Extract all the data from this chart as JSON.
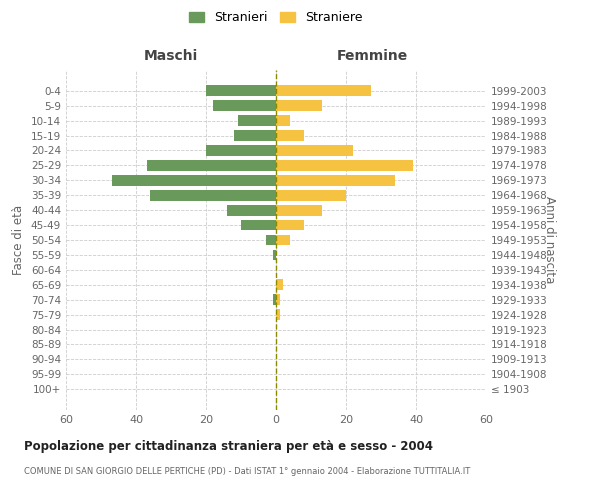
{
  "age_groups": [
    "0-4",
    "5-9",
    "10-14",
    "15-19",
    "20-24",
    "25-29",
    "30-34",
    "35-39",
    "40-44",
    "45-49",
    "50-54",
    "55-59",
    "60-64",
    "65-69",
    "70-74",
    "75-79",
    "80-84",
    "85-89",
    "90-94",
    "95-99",
    "100+"
  ],
  "birth_years": [
    "1999-2003",
    "1994-1998",
    "1989-1993",
    "1984-1988",
    "1979-1983",
    "1974-1978",
    "1969-1973",
    "1964-1968",
    "1959-1963",
    "1954-1958",
    "1949-1953",
    "1944-1948",
    "1939-1943",
    "1934-1938",
    "1929-1933",
    "1924-1928",
    "1919-1923",
    "1914-1918",
    "1909-1913",
    "1904-1908",
    "≤ 1903"
  ],
  "maschi": [
    20,
    18,
    11,
    12,
    20,
    37,
    47,
    36,
    14,
    10,
    3,
    1,
    0,
    0,
    1,
    0,
    0,
    0,
    0,
    0,
    0
  ],
  "femmine": [
    27,
    13,
    4,
    8,
    22,
    39,
    34,
    20,
    13,
    8,
    4,
    0,
    0,
    2,
    1,
    1,
    0,
    0,
    0,
    0,
    0
  ],
  "maschi_color": "#6a9a5b",
  "femmine_color": "#f5c242",
  "background_color": "#ffffff",
  "grid_color": "#cccccc",
  "title": "Popolazione per cittadinanza straniera per età e sesso - 2004",
  "subtitle": "COMUNE DI SAN GIORGIO DELLE PERTICHE (PD) - Dati ISTAT 1° gennaio 2004 - Elaborazione TUTTITALIA.IT",
  "xlabel_left": "Maschi",
  "xlabel_right": "Femmine",
  "ylabel_left": "Fasce di età",
  "ylabel_right": "Anni di nascita",
  "legend_maschi": "Stranieri",
  "legend_femmine": "Straniere",
  "xlim": 60,
  "dashed_line_color": "#8a8a00"
}
